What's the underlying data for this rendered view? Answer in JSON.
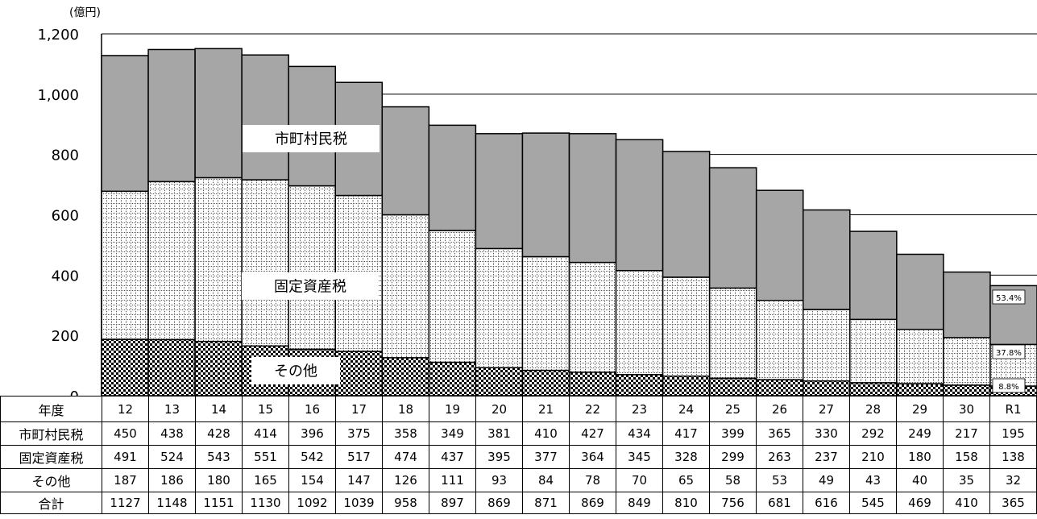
{
  "chart_data": {
    "type": "bar",
    "stacked": true,
    "unit_label": "(億円)",
    "categories": [
      "12",
      "13",
      "14",
      "15",
      "16",
      "17",
      "18",
      "19",
      "20",
      "21",
      "22",
      "23",
      "24",
      "25",
      "26",
      "27",
      "28",
      "29",
      "30",
      "R1"
    ],
    "ylim": [
      0,
      1200
    ],
    "yticks": [
      "0",
      "200",
      "400",
      "600",
      "800",
      "1,000",
      "1,200"
    ],
    "grid": true,
    "series": [
      {
        "name": "その他",
        "values": [
          187,
          186,
          180,
          165,
          154,
          147,
          126,
          111,
          93,
          84,
          78,
          70,
          65,
          58,
          53,
          49,
          43,
          40,
          35,
          32
        ]
      },
      {
        "name": "固定資産税",
        "values": [
          491,
          524,
          543,
          551,
          542,
          517,
          474,
          437,
          395,
          377,
          364,
          345,
          328,
          299,
          263,
          237,
          210,
          180,
          158,
          138
        ]
      },
      {
        "name": "市町村民税",
        "values": [
          450,
          438,
          428,
          414,
          396,
          375,
          358,
          349,
          381,
          410,
          427,
          434,
          417,
          399,
          365,
          330,
          292,
          249,
          217,
          195
        ]
      }
    ],
    "last_bar_shares": {
      "市町村民税": "53.4%",
      "固定資産税": "37.8%",
      "その他": "8.8%"
    }
  },
  "table": {
    "header_label": "年度",
    "rows": [
      {
        "label": "市町村民税",
        "values": [
          "450",
          "438",
          "428",
          "414",
          "396",
          "375",
          "358",
          "349",
          "381",
          "410",
          "427",
          "434",
          "417",
          "399",
          "365",
          "330",
          "292",
          "249",
          "217",
          "195"
        ]
      },
      {
        "label": "固定資産税",
        "values": [
          "491",
          "524",
          "543",
          "551",
          "542",
          "517",
          "474",
          "437",
          "395",
          "377",
          "364",
          "345",
          "328",
          "299",
          "263",
          "237",
          "210",
          "180",
          "158",
          "138"
        ]
      },
      {
        "label": "その他",
        "values": [
          "187",
          "186",
          "180",
          "165",
          "154",
          "147",
          "126",
          "111",
          "93",
          "84",
          "78",
          "70",
          "65",
          "58",
          "53",
          "49",
          "43",
          "40",
          "35",
          "32"
        ]
      },
      {
        "label": "合計",
        "values": [
          "1127",
          "1148",
          "1151",
          "1130",
          "1092",
          "1039",
          "958",
          "897",
          "869",
          "871",
          "869",
          "849",
          "810",
          "756",
          "681",
          "616",
          "545",
          "469",
          "410",
          "365"
        ]
      }
    ]
  },
  "colors": {
    "resident_tax": "#a6a6a6",
    "grid": "#000000"
  }
}
